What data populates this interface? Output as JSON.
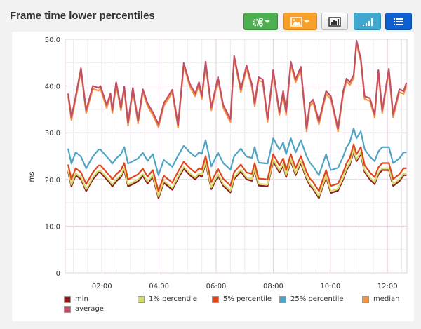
{
  "header": {
    "title": "Frame time lower percentiles"
  },
  "toolbar": [
    {
      "icon": "gears-dropdown-icon",
      "color": "#4caf50"
    },
    {
      "icon": "image-dropdown-icon",
      "color": "#f7a12a"
    },
    {
      "icon": "bar-chart-icon",
      "color": "#f2f2f2"
    },
    {
      "icon": "signal-bars-icon",
      "color": "#41a7cf"
    },
    {
      "icon": "list-icon",
      "color": "#0e5fcf"
    }
  ],
  "chart_data": {
    "type": "line",
    "ylabel": "ms",
    "ylim": [
      0,
      50
    ],
    "xlim": [
      "00:43",
      "12:41"
    ],
    "yticks": [
      "50.0",
      "40.0",
      "30.0",
      "20.0",
      "10.0",
      "0"
    ],
    "ytick_values": [
      50,
      40,
      30,
      20,
      10,
      0
    ],
    "xticks": [
      "02:00",
      "04:00",
      "06:00",
      "08:00",
      "10:00",
      "12:00"
    ],
    "grid": true,
    "legend_position": "bottom",
    "x": [
      "00:49",
      "00:56",
      "01:05",
      "01:16",
      "01:27",
      "01:41",
      "01:53",
      "01:57",
      "02:10",
      "02:18",
      "02:22",
      "02:30",
      "02:40",
      "02:47",
      "02:55",
      "03:05",
      "03:16",
      "03:26",
      "03:36",
      "03:47",
      "03:59",
      "04:10",
      "04:28",
      "04:40",
      "04:52",
      "05:05",
      "05:16",
      "05:24",
      "05:30",
      "05:38",
      "05:50",
      "06:04",
      "06:15",
      "06:30",
      "06:38",
      "06:52",
      "07:04",
      "07:15",
      "07:21",
      "07:29",
      "07:38",
      "07:48",
      "08:00",
      "08:13",
      "08:21",
      "08:27",
      "08:37",
      "08:47",
      "08:58",
      "09:10",
      "09:17",
      "09:24",
      "09:36",
      "09:51",
      "10:01",
      "10:16",
      "10:27",
      "10:34",
      "10:41",
      "10:49",
      "10:55",
      "11:04",
      "11:12",
      "11:23",
      "11:33",
      "11:41",
      "11:49",
      "12:03",
      "12:12",
      "12:25",
      "12:34",
      "12:40"
    ],
    "series": [
      {
        "name": "min",
        "color": "#8b1c1c",
        "values": [
          21.7,
          18.5,
          20.9,
          20.0,
          17.5,
          20.0,
          21.5,
          21.5,
          20.0,
          19.1,
          18.5,
          19.6,
          20.5,
          22.0,
          18.5,
          19.0,
          19.6,
          20.8,
          19.1,
          20.5,
          16.0,
          19.3,
          17.8,
          20.2,
          22.3,
          20.9,
          20.0,
          20.9,
          20.6,
          23.5,
          17.9,
          20.8,
          18.6,
          17.2,
          20.1,
          21.7,
          20.0,
          19.7,
          22.0,
          18.7,
          18.6,
          18.5,
          23.9,
          21.5,
          23.0,
          20.5,
          23.9,
          20.9,
          23.5,
          20.1,
          18.7,
          17.9,
          16.0,
          20.5,
          17.1,
          17.6,
          20.0,
          22.0,
          23.1,
          26.0,
          23.9,
          25.4,
          21.6,
          20.0,
          19.0,
          21.1,
          22.0,
          22.0,
          18.6,
          19.6,
          20.9,
          20.9
        ]
      },
      {
        "name": "1% percentile",
        "color": "#d4dc6e",
        "values": [
          22.1,
          18.9,
          21.3,
          20.4,
          17.9,
          20.4,
          21.9,
          21.9,
          20.4,
          19.5,
          18.9,
          20.0,
          20.9,
          22.4,
          18.9,
          19.4,
          20.0,
          21.2,
          19.5,
          20.9,
          16.4,
          19.7,
          18.2,
          20.6,
          22.7,
          21.3,
          20.4,
          21.3,
          21.0,
          23.9,
          18.3,
          21.2,
          19.0,
          17.6,
          20.5,
          22.1,
          20.4,
          20.1,
          22.4,
          19.1,
          19.0,
          18.9,
          24.3,
          21.9,
          23.4,
          20.9,
          24.3,
          21.3,
          23.9,
          20.5,
          19.1,
          18.3,
          16.4,
          20.9,
          17.5,
          18.0,
          20.4,
          22.4,
          23.5,
          26.4,
          24.3,
          25.8,
          22.0,
          20.4,
          19.4,
          21.5,
          22.4,
          22.4,
          19.0,
          20.0,
          21.3,
          21.3
        ]
      },
      {
        "name": "5% percentile",
        "color": "#e0461c",
        "values": [
          23.2,
          20.0,
          22.4,
          21.5,
          19.0,
          21.5,
          23.0,
          23.0,
          21.5,
          20.6,
          20.0,
          21.1,
          22.0,
          23.5,
          20.0,
          20.5,
          21.1,
          22.3,
          20.6,
          22.0,
          17.5,
          20.8,
          19.3,
          21.7,
          23.8,
          22.4,
          21.5,
          22.4,
          22.1,
          25.0,
          19.4,
          22.3,
          20.1,
          18.7,
          21.6,
          23.2,
          21.5,
          21.2,
          23.5,
          20.2,
          20.1,
          20.0,
          25.4,
          23.0,
          24.5,
          22.0,
          25.4,
          22.4,
          25.0,
          21.6,
          20.2,
          19.4,
          17.5,
          22.0,
          18.6,
          19.1,
          21.5,
          23.5,
          24.6,
          27.5,
          25.4,
          26.9,
          23.1,
          21.5,
          20.5,
          22.6,
          23.5,
          23.5,
          20.1,
          21.1,
          22.4,
          22.4
        ]
      },
      {
        "name": "25% percentile",
        "color": "#4fa3c4",
        "values": [
          26.6,
          23.4,
          25.8,
          24.9,
          22.4,
          24.9,
          26.4,
          26.4,
          24.9,
          24.0,
          23.4,
          24.5,
          25.4,
          26.9,
          23.4,
          23.9,
          24.5,
          25.7,
          24.0,
          25.4,
          20.9,
          24.2,
          22.7,
          25.1,
          27.2,
          25.8,
          24.9,
          25.8,
          25.5,
          28.4,
          22.8,
          25.7,
          23.5,
          22.1,
          25.0,
          26.6,
          24.9,
          24.6,
          26.9,
          23.6,
          23.5,
          23.4,
          28.8,
          26.4,
          27.9,
          25.4,
          28.8,
          25.8,
          28.4,
          25.0,
          23.6,
          22.8,
          20.9,
          25.4,
          22.0,
          22.5,
          24.9,
          26.9,
          28.0,
          30.9,
          28.8,
          30.3,
          26.5,
          24.9,
          23.9,
          26.0,
          26.9,
          26.9,
          23.5,
          24.5,
          25.8,
          25.8
        ]
      },
      {
        "name": "median",
        "color": "#f59342",
        "values": [
          37.8,
          32.7,
          37.2,
          43.2,
          34.2,
          39.4,
          39.0,
          39.4,
          35.3,
          37.8,
          34.2,
          40.2,
          34.8,
          39.3,
          31.5,
          39.0,
          32.0,
          38.7,
          35.7,
          33.8,
          31.2,
          35.7,
          38.6,
          31.1,
          44.3,
          39.8,
          37.8,
          40.2,
          37.2,
          44.6,
          34.8,
          41.3,
          35.3,
          32.3,
          45.8,
          38.7,
          43.8,
          39.8,
          35.7,
          41.3,
          40.8,
          32.3,
          42.8,
          33.8,
          38.3,
          33.8,
          44.6,
          40.8,
          43.5,
          30.3,
          35.7,
          36.5,
          31.8,
          38.3,
          37.2,
          30.3,
          38.3,
          41.0,
          40.2,
          41.7,
          49.1,
          45.3,
          37.2,
          36.8,
          33.3,
          42.8,
          34.2,
          43.1,
          33.3,
          38.7,
          38.3,
          40.1
        ]
      },
      {
        "name": "average",
        "color": "#c24f63",
        "values": [
          38.4,
          33.3,
          37.8,
          43.8,
          34.8,
          40.0,
          39.6,
          40.0,
          35.9,
          38.4,
          34.8,
          40.8,
          35.4,
          39.9,
          32.1,
          39.6,
          32.6,
          39.3,
          36.3,
          34.4,
          31.8,
          36.3,
          39.2,
          31.7,
          44.9,
          40.4,
          38.4,
          40.8,
          37.8,
          45.2,
          35.4,
          41.9,
          35.9,
          32.9,
          46.4,
          39.3,
          44.4,
          40.4,
          36.3,
          41.9,
          41.4,
          32.9,
          43.4,
          34.4,
          38.9,
          34.4,
          45.2,
          41.4,
          44.1,
          30.9,
          36.3,
          37.1,
          32.4,
          38.9,
          37.8,
          30.9,
          38.9,
          41.6,
          40.8,
          42.3,
          49.7,
          45.9,
          37.8,
          37.4,
          33.9,
          43.4,
          34.8,
          43.7,
          33.9,
          39.3,
          38.9,
          40.7
        ]
      }
    ]
  }
}
